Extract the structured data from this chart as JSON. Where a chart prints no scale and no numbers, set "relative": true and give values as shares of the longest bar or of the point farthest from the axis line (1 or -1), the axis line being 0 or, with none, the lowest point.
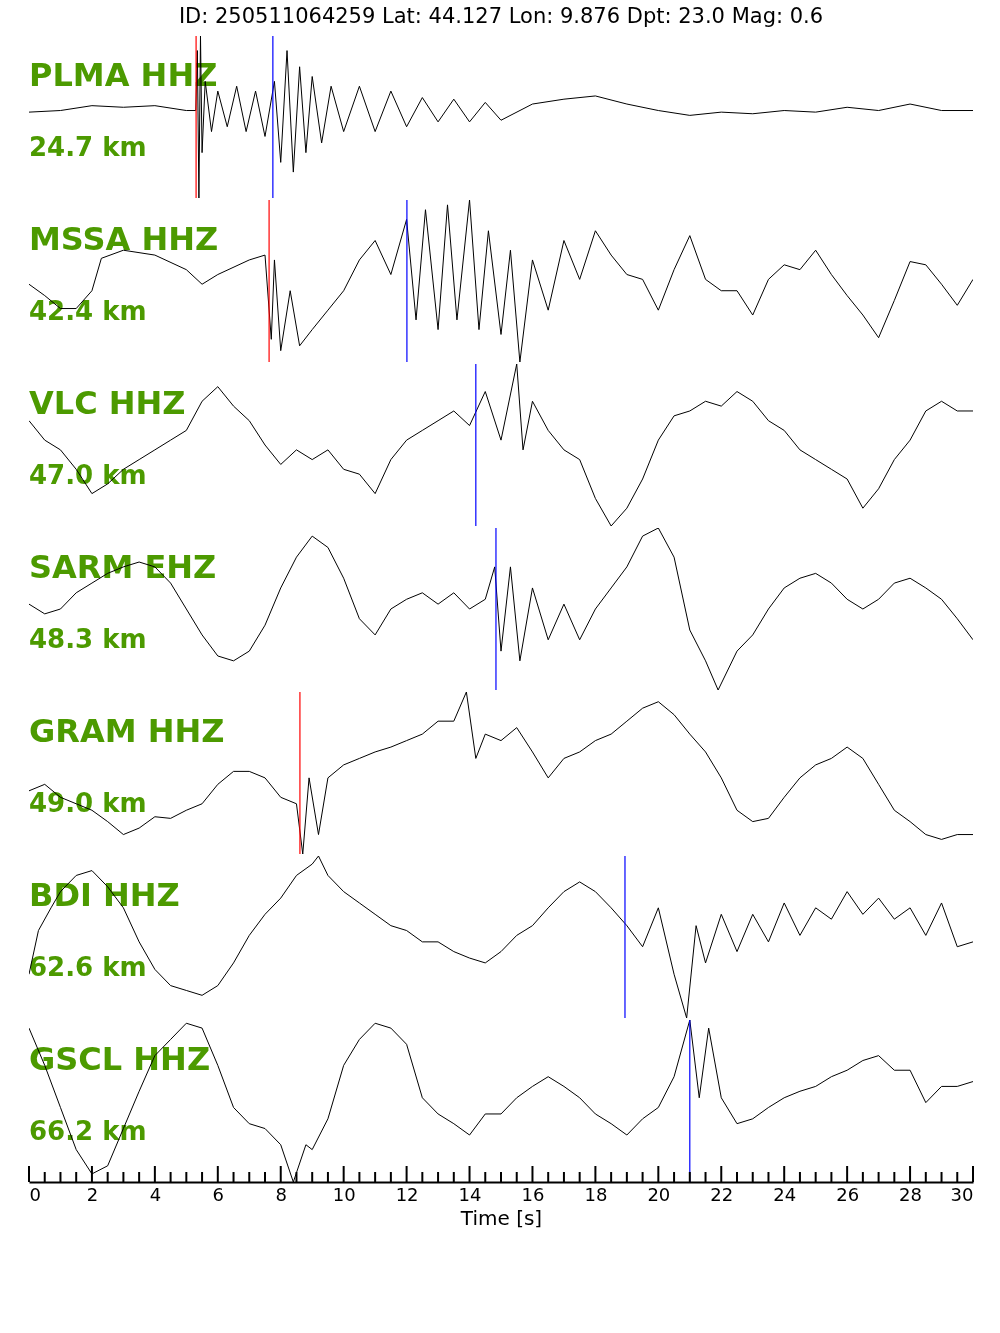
{
  "chart_data": [
    {
      "type": "line",
      "title": "ID: 250511064259 Lat:  44.127 Lon:   9.876 Dpt:    23.0 Mag:   0.6",
      "relative": true,
      "xlim": [
        0,
        30
      ],
      "tick_labels": false,
      "annotations": [
        "PLMA HHZ",
        "24.7 km"
      ],
      "ref_lines": [
        {
          "axis": "x",
          "value": 5.31,
          "color": "#ff0000"
        },
        {
          "axis": "x",
          "value": 7.75,
          "color": "#0000ff"
        }
      ],
      "x": [
        0,
        1,
        2,
        3,
        4,
        5,
        5.3,
        5.35,
        5.4,
        5.45,
        5.5,
        5.6,
        5.8,
        6,
        6.3,
        6.6,
        6.9,
        7.2,
        7.5,
        7.8,
        8,
        8.2,
        8.4,
        8.6,
        8.8,
        9,
        9.3,
        9.6,
        10,
        10.5,
        11,
        11.5,
        12,
        12.5,
        13,
        13.5,
        14,
        14.5,
        15,
        16,
        17,
        18,
        19,
        20,
        21,
        22,
        23,
        24,
        25,
        26,
        27,
        28,
        29,
        30
      ],
      "series": [
        {
          "color": "#000000",
          "values": [
            0.53,
            0.54,
            0.57,
            0.56,
            0.57,
            0.54,
            0.54,
            0.91,
            0,
            1,
            0.28,
            0.72,
            0.41,
            0.66,
            0.44,
            0.69,
            0.41,
            0.66,
            0.38,
            0.72,
            0.22,
            0.91,
            0.16,
            0.81,
            0.28,
            0.75,
            0.34,
            0.69,
            0.41,
            0.69,
            0.41,
            0.66,
            0.44,
            0.62,
            0.47,
            0.61,
            0.47,
            0.59,
            0.48,
            0.58,
            0.61,
            0.63,
            0.58,
            0.54,
            0.51,
            0.53,
            0.52,
            0.54,
            0.53,
            0.56,
            0.54,
            0.58,
            0.54,
            0.54
          ]
        }
      ]
    },
    {
      "type": "line",
      "relative": true,
      "xlim": [
        0,
        30
      ],
      "tick_labels": false,
      "annotations": [
        "MSSA HHZ",
        "42.4 km"
      ],
      "ref_lines": [
        {
          "axis": "x",
          "value": 7.63,
          "color": "#ff0000"
        },
        {
          "axis": "x",
          "value": 12.01,
          "color": "#0000ff"
        }
      ],
      "x": [
        0,
        0.5,
        1,
        1.5,
        2,
        2.3,
        3,
        4,
        5,
        5.5,
        6,
        7,
        7.5,
        7.7,
        7.8,
        8,
        8.3,
        8.6,
        9,
        9.5,
        10,
        10.5,
        11,
        11.5,
        12,
        12.3,
        12.6,
        13,
        13.3,
        13.6,
        14,
        14.3,
        14.6,
        15,
        15.3,
        15.6,
        16,
        16.5,
        17,
        17.5,
        18,
        18.5,
        19,
        19.5,
        20,
        20.5,
        21,
        21.5,
        22,
        22.5,
        23,
        23.5,
        24,
        24.5,
        25,
        25.5,
        26,
        26.5,
        27,
        27.5,
        28,
        28.5,
        29,
        29.5,
        30
      ],
      "series": [
        {
          "color": "#000000",
          "values": [
            0.48,
            0.41,
            0.33,
            0.33,
            0.44,
            0.64,
            0.69,
            0.66,
            0.57,
            0.48,
            0.54,
            0.63,
            0.66,
            0.14,
            0.63,
            0.07,
            0.44,
            0.1,
            0.2,
            0.32,
            0.44,
            0.63,
            0.75,
            0.54,
            0.88,
            0.26,
            0.94,
            0.2,
            0.97,
            0.26,
            1,
            0.2,
            0.81,
            0.17,
            0.69,
            0,
            0.63,
            0.32,
            0.75,
            0.51,
            0.81,
            0.66,
            0.54,
            0.51,
            0.32,
            0.57,
            0.78,
            0.51,
            0.44,
            0.44,
            0.29,
            0.51,
            0.6,
            0.57,
            0.69,
            0.54,
            0.41,
            0.29,
            0.15,
            0.38,
            0.62,
            0.6,
            0.48,
            0.35,
            0.51
          ]
        }
      ]
    },
    {
      "type": "line",
      "relative": true,
      "xlim": [
        0,
        30
      ],
      "tick_labels": false,
      "annotations": [
        "VLC HHZ",
        "47.0 km"
      ],
      "ref_lines": [
        {
          "axis": "x",
          "value": 14.2,
          "color": "#0000ff"
        }
      ],
      "x": [
        0,
        0.5,
        1,
        1.5,
        2,
        2.5,
        3,
        3.5,
        4,
        4.5,
        5,
        5.5,
        6,
        6.5,
        7,
        7.5,
        8,
        8.5,
        9,
        9.5,
        10,
        10.5,
        11,
        11.5,
        12,
        12.5,
        13,
        13.5,
        14,
        14.5,
        15,
        15.5,
        15.7,
        16,
        16.5,
        17,
        17.5,
        18,
        18.5,
        19,
        19.5,
        20,
        20.5,
        21,
        21.5,
        22,
        22.5,
        23,
        23.5,
        24,
        24.5,
        25,
        25.5,
        26,
        26.5,
        27,
        27.5,
        28,
        28.5,
        29,
        29.5,
        30
      ],
      "series": [
        {
          "color": "#000000",
          "values": [
            0.65,
            0.53,
            0.47,
            0.35,
            0.2,
            0.26,
            0.35,
            0.41,
            0.47,
            0.53,
            0.59,
            0.77,
            0.86,
            0.74,
            0.65,
            0.5,
            0.38,
            0.47,
            0.41,
            0.47,
            0.35,
            0.32,
            0.2,
            0.41,
            0.53,
            0.59,
            0.65,
            0.71,
            0.62,
            0.83,
            0.53,
            1,
            0.47,
            0.77,
            0.59,
            0.47,
            0.41,
            0.17,
            0,
            0.11,
            0.29,
            0.53,
            0.68,
            0.71,
            0.77,
            0.74,
            0.83,
            0.77,
            0.65,
            0.59,
            0.47,
            0.41,
            0.35,
            0.29,
            0.11,
            0.23,
            0.41,
            0.53,
            0.71,
            0.77,
            0.71,
            0.71
          ]
        }
      ]
    },
    {
      "type": "line",
      "relative": true,
      "xlim": [
        0,
        30
      ],
      "tick_labels": false,
      "annotations": [
        "SARM EHZ",
        "48.3 km"
      ],
      "ref_lines": [
        {
          "axis": "x",
          "value": 14.84,
          "color": "#0000ff"
        }
      ],
      "x": [
        0,
        0.5,
        1,
        1.5,
        2,
        2.5,
        3,
        3.5,
        4,
        4.5,
        5,
        5.5,
        6,
        6.5,
        7,
        7.5,
        8,
        8.5,
        9,
        9.5,
        10,
        10.5,
        11,
        11.5,
        12,
        12.5,
        13,
        13.5,
        14,
        14.5,
        14.8,
        15,
        15.3,
        15.6,
        16,
        16.5,
        17,
        17.5,
        18,
        18.5,
        19,
        19.5,
        20,
        20.5,
        21,
        21.5,
        21.9,
        22.5,
        23,
        23.5,
        24,
        24.5,
        25,
        25.5,
        26,
        26.5,
        27,
        27.5,
        28,
        28.5,
        29,
        29.5,
        30
      ],
      "series": [
        {
          "color": "#000000",
          "values": [
            0.53,
            0.47,
            0.5,
            0.6,
            0.66,
            0.72,
            0.76,
            0.79,
            0.76,
            0.66,
            0.5,
            0.34,
            0.21,
            0.18,
            0.24,
            0.4,
            0.63,
            0.82,
            0.95,
            0.88,
            0.69,
            0.44,
            0.34,
            0.5,
            0.56,
            0.6,
            0.53,
            0.6,
            0.5,
            0.56,
            0.76,
            0.24,
            0.76,
            0.18,
            0.63,
            0.31,
            0.53,
            0.31,
            0.5,
            0.63,
            0.76,
            0.95,
            1,
            0.82,
            0.37,
            0.18,
            0,
            0.24,
            0.34,
            0.5,
            0.63,
            0.69,
            0.72,
            0.66,
            0.56,
            0.5,
            0.56,
            0.66,
            0.69,
            0.63,
            0.56,
            0.44,
            0.31
          ]
        }
      ]
    },
    {
      "type": "line",
      "relative": true,
      "xlim": [
        0,
        30
      ],
      "tick_labels": false,
      "annotations": [
        "GRAM HHZ",
        "49.0 km"
      ],
      "ref_lines": [
        {
          "axis": "x",
          "value": 8.61,
          "color": "#ff0000"
        }
      ],
      "x": [
        0,
        0.5,
        1,
        1.5,
        2,
        2.5,
        3,
        3.5,
        4,
        4.5,
        5,
        5.5,
        6,
        6.5,
        7,
        7.5,
        8,
        8.5,
        8.7,
        8.9,
        9.2,
        9.5,
        10,
        10.5,
        11,
        11.5,
        12,
        12.5,
        13,
        13.5,
        13.9,
        14.2,
        14.5,
        15,
        15.5,
        16,
        16.5,
        17,
        17.5,
        18,
        18.5,
        19,
        19.5,
        20,
        20.5,
        21,
        21.5,
        22,
        22.5,
        23,
        23.5,
        24,
        24.5,
        25,
        25.5,
        26,
        26.5,
        27,
        27.5,
        28,
        28.5,
        29,
        29.5,
        30
      ],
      "series": [
        {
          "color": "#000000",
          "values": [
            0.39,
            0.43,
            0.35,
            0.31,
            0.27,
            0.2,
            0.12,
            0.16,
            0.23,
            0.22,
            0.27,
            0.31,
            0.43,
            0.51,
            0.51,
            0.47,
            0.35,
            0.31,
            0,
            0.47,
            0.12,
            0.47,
            0.55,
            0.59,
            0.63,
            0.66,
            0.7,
            0.74,
            0.82,
            0.82,
            1,
            0.59,
            0.74,
            0.7,
            0.78,
            0.63,
            0.47,
            0.59,
            0.63,
            0.7,
            0.74,
            0.82,
            0.9,
            0.94,
            0.86,
            0.74,
            0.63,
            0.47,
            0.27,
            0.2,
            0.22,
            0.35,
            0.47,
            0.55,
            0.59,
            0.66,
            0.59,
            0.43,
            0.27,
            0.2,
            0.12,
            0.09,
            0.12,
            0.12
          ]
        }
      ]
    },
    {
      "type": "line",
      "relative": true,
      "xlim": [
        0,
        30
      ],
      "tick_labels": false,
      "annotations": [
        "BDI HHZ",
        "62.6 km"
      ],
      "ref_lines": [
        {
          "axis": "x",
          "value": 18.94,
          "color": "#0000ff"
        }
      ],
      "x": [
        0,
        0.3,
        0.7,
        1,
        1.5,
        2,
        2.5,
        3,
        3.5,
        4,
        4.5,
        5,
        5.5,
        6,
        6.5,
        7,
        7.5,
        8,
        8.5,
        9,
        9.2,
        9.5,
        10,
        10.5,
        11,
        11.5,
        12,
        12.5,
        13,
        13.5,
        14,
        14.5,
        15,
        15.5,
        16,
        16.5,
        17,
        17.5,
        18,
        18.5,
        19,
        19.5,
        20,
        20.5,
        20.9,
        21.2,
        21.5,
        22,
        22.5,
        23,
        23.5,
        24,
        24.5,
        25,
        25.5,
        26,
        26.5,
        27,
        27.5,
        28,
        28.5,
        29,
        29.5,
        30
      ],
      "series": [
        {
          "color": "#000000",
          "values": [
            0.27,
            0.54,
            0.68,
            0.78,
            0.88,
            0.91,
            0.81,
            0.68,
            0.47,
            0.3,
            0.2,
            0.17,
            0.14,
            0.2,
            0.34,
            0.51,
            0.64,
            0.74,
            0.88,
            0.95,
            1,
            0.88,
            0.78,
            0.71,
            0.64,
            0.57,
            0.54,
            0.47,
            0.47,
            0.41,
            0.37,
            0.34,
            0.41,
            0.51,
            0.57,
            0.68,
            0.78,
            0.84,
            0.78,
            0.68,
            0.57,
            0.44,
            0.68,
            0.27,
            0,
            0.57,
            0.34,
            0.64,
            0.41,
            0.64,
            0.47,
            0.71,
            0.51,
            0.68,
            0.61,
            0.78,
            0.64,
            0.74,
            0.61,
            0.68,
            0.51,
            0.71,
            0.44,
            0.47
          ]
        }
      ]
    },
    {
      "type": "line",
      "relative": true,
      "xlim": [
        0,
        30
      ],
      "tick_labels": "x",
      "xlabel": "Time [s]",
      "annotations": [
        "GSCL HHZ",
        "66.2 km"
      ],
      "ref_lines": [
        {
          "axis": "x",
          "value": 21.0,
          "color": "#0000ff"
        }
      ],
      "xticks": [
        0,
        {
          "value": 0.5,
          "label": null
        },
        {
          "value": 1,
          "label": null
        },
        {
          "value": 1.5,
          "label": null
        },
        2,
        {
          "value": 2.5,
          "label": null
        },
        {
          "value": 3,
          "label": null
        },
        {
          "value": 3.5,
          "label": null
        },
        4,
        {
          "value": 4.5,
          "label": null
        },
        {
          "value": 5,
          "label": null
        },
        {
          "value": 5.5,
          "label": null
        },
        6,
        {
          "value": 6.5,
          "label": null
        },
        {
          "value": 7,
          "label": null
        },
        {
          "value": 7.5,
          "label": null
        },
        8,
        {
          "value": 8.5,
          "label": null
        },
        {
          "value": 9,
          "label": null
        },
        {
          "value": 9.5,
          "label": null
        },
        10,
        {
          "value": 10.5,
          "label": null
        },
        {
          "value": 11,
          "label": null
        },
        {
          "value": 11.5,
          "label": null
        },
        12,
        {
          "value": 12.5,
          "label": null
        },
        {
          "value": 13,
          "label": null
        },
        {
          "value": 13.5,
          "label": null
        },
        14,
        {
          "value": 14.5,
          "label": null
        },
        {
          "value": 15,
          "label": null
        },
        {
          "value": 15.5,
          "label": null
        },
        16,
        {
          "value": 16.5,
          "label": null
        },
        {
          "value": 17,
          "label": null
        },
        {
          "value": 17.5,
          "label": null
        },
        18,
        {
          "value": 18.5,
          "label": null
        },
        {
          "value": 19,
          "label": null
        },
        {
          "value": 19.5,
          "label": null
        },
        20,
        {
          "value": 20.5,
          "label": null
        },
        {
          "value": 21,
          "label": null
        },
        {
          "value": 21.5,
          "label": null
        },
        22,
        {
          "value": 22.5,
          "label": null
        },
        {
          "value": 23,
          "label": null
        },
        {
          "value": 23.5,
          "label": null
        },
        24,
        {
          "value": 24.5,
          "label": null
        },
        {
          "value": 25,
          "label": null
        },
        {
          "value": 25.5,
          "label": null
        },
        26,
        {
          "value": 26.5,
          "label": null
        },
        {
          "value": 27,
          "label": null
        },
        {
          "value": 27.5,
          "label": null
        },
        28,
        {
          "value": 28.5,
          "label": null
        },
        {
          "value": 29,
          "label": null
        },
        {
          "value": 29.5,
          "label": null
        },
        30
      ],
      "x": [
        0,
        0.5,
        1,
        1.5,
        2,
        2.5,
        3,
        3.5,
        4,
        4.5,
        5,
        5.5,
        6,
        6.5,
        7,
        7.5,
        8,
        8.4,
        8.8,
        9,
        9.5,
        10,
        10.5,
        11,
        11.5,
        12,
        12.5,
        13,
        13.5,
        14,
        14.5,
        15,
        15.5,
        16,
        16.5,
        17,
        17.5,
        18,
        18.5,
        19,
        19.5,
        20,
        20.5,
        21,
        21.3,
        21.6,
        22,
        22.5,
        23,
        23.5,
        24,
        24.5,
        25,
        25.5,
        26,
        26.5,
        27,
        27.5,
        28,
        28.5,
        29,
        29.5,
        30
      ],
      "series": [
        {
          "color": "#000000",
          "values": [
            0.95,
            0.72,
            0.46,
            0.2,
            0.05,
            0.1,
            0.33,
            0.56,
            0.78,
            0.88,
            0.98,
            0.95,
            0.72,
            0.46,
            0.36,
            0.33,
            0.23,
            0,
            0.23,
            0.2,
            0.39,
            0.72,
            0.88,
            0.98,
            0.95,
            0.85,
            0.52,
            0.42,
            0.36,
            0.29,
            0.42,
            0.42,
            0.52,
            0.59,
            0.65,
            0.59,
            0.52,
            0.42,
            0.36,
            0.29,
            0.39,
            0.46,
            0.65,
            1,
            0.52,
            0.95,
            0.52,
            0.36,
            0.39,
            0.46,
            0.52,
            0.56,
            0.59,
            0.65,
            0.69,
            0.75,
            0.78,
            0.69,
            0.69,
            0.49,
            0.59,
            0.59,
            0.62
          ]
        }
      ]
    }
  ]
}
